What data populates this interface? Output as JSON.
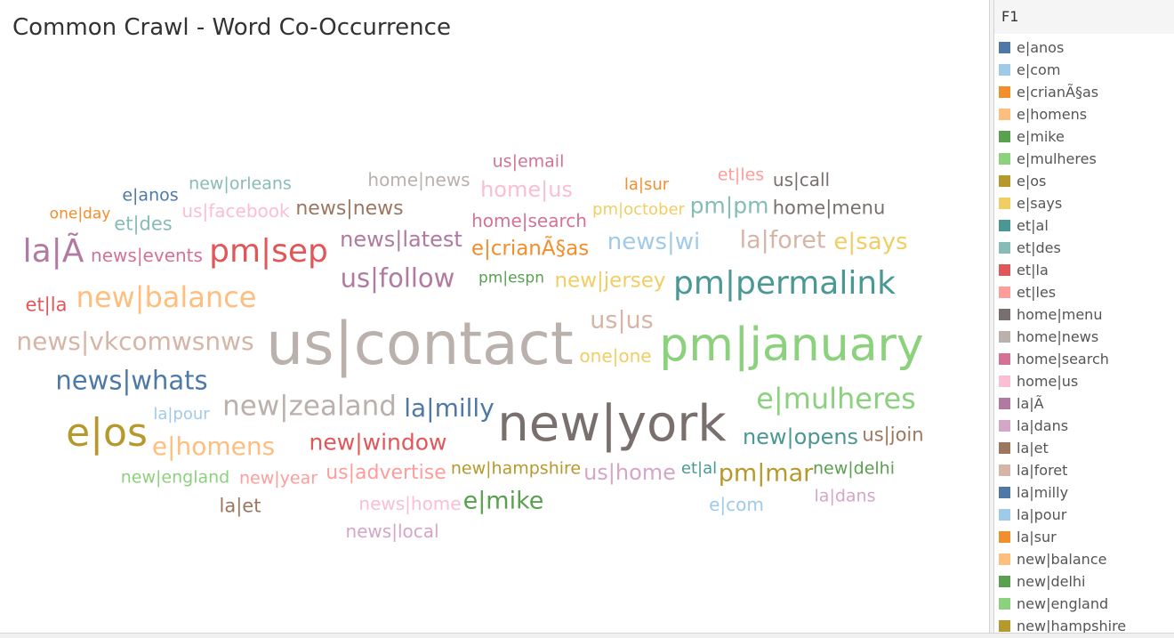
{
  "title": "Common Crawl - Word Co-Occurrence",
  "legend": {
    "title": "F1",
    "items": [
      {
        "label": "e|anos",
        "color": "#4e79a7"
      },
      {
        "label": "e|com",
        "color": "#a0cbe8"
      },
      {
        "label": "e|crianÃ§as",
        "color": "#f28e2b"
      },
      {
        "label": "e|homens",
        "color": "#ffbe7d"
      },
      {
        "label": "e|mike",
        "color": "#59a14f"
      },
      {
        "label": "e|mulheres",
        "color": "#8cd17d"
      },
      {
        "label": "e|os",
        "color": "#b6992d"
      },
      {
        "label": "e|says",
        "color": "#f1ce63"
      },
      {
        "label": "et|al",
        "color": "#499894"
      },
      {
        "label": "et|des",
        "color": "#86bcb6"
      },
      {
        "label": "et|la",
        "color": "#e15759"
      },
      {
        "label": "et|les",
        "color": "#ff9d9a"
      },
      {
        "label": "home|menu",
        "color": "#79706e"
      },
      {
        "label": "home|news",
        "color": "#bab0ac"
      },
      {
        "label": "home|search",
        "color": "#d37295"
      },
      {
        "label": "home|us",
        "color": "#fabfd2"
      },
      {
        "label": "la|Ã",
        "color": "#b07aa1"
      },
      {
        "label": "la|dans",
        "color": "#d4a6c8"
      },
      {
        "label": "la|et",
        "color": "#9d7660"
      },
      {
        "label": "la|foret",
        "color": "#d7b5a6"
      },
      {
        "label": "la|milly",
        "color": "#4e79a7"
      },
      {
        "label": "la|pour",
        "color": "#a0cbe8"
      },
      {
        "label": "la|sur",
        "color": "#f28e2b"
      },
      {
        "label": "new|balance",
        "color": "#ffbe7d"
      },
      {
        "label": "new|delhi",
        "color": "#59a14f"
      },
      {
        "label": "new|england",
        "color": "#8cd17d"
      },
      {
        "label": "new|hampshire",
        "color": "#b6992d"
      }
    ]
  },
  "chart_data": {
    "type": "wordcloud",
    "words": [
      {
        "text": "us|contact",
        "color": "#bab0ac",
        "size": 66
      },
      {
        "text": "pm|january",
        "color": "#8cd17d",
        "size": 52
      },
      {
        "text": "new|york",
        "color": "#79706e",
        "size": 56
      },
      {
        "text": "e|os",
        "color": "#b6992d",
        "size": 44
      },
      {
        "text": "pm|permalink",
        "color": "#499894",
        "size": 36
      },
      {
        "text": "pm|sep",
        "color": "#e15759",
        "size": 36
      },
      {
        "text": "la|Ã",
        "color": "#b07aa1",
        "size": 36
      },
      {
        "text": "e|mulheres",
        "color": "#8cd17d",
        "size": 32
      },
      {
        "text": "new|balance",
        "color": "#ffbe7d",
        "size": 32
      },
      {
        "text": "new|zealand",
        "color": "#bab0ac",
        "size": 31
      },
      {
        "text": "news|whats",
        "color": "#4e79a7",
        "size": 29
      },
      {
        "text": "us|follow",
        "color": "#b07aa1",
        "size": 29
      },
      {
        "text": "e|homens",
        "color": "#ffbe7d",
        "size": 28
      },
      {
        "text": "news|vkcomwsnws",
        "color": "#d7b5a6",
        "size": 28
      },
      {
        "text": "la|milly",
        "color": "#4e79a7",
        "size": 28
      },
      {
        "text": "la|foret",
        "color": "#d7b5a6",
        "size": 27
      },
      {
        "text": "e|mike",
        "color": "#59a14f",
        "size": 27
      },
      {
        "text": "pm|mar",
        "color": "#b6992d",
        "size": 27
      },
      {
        "text": "us|us",
        "color": "#d7b5a6",
        "size": 27
      },
      {
        "text": "news|wi",
        "color": "#a0cbe8",
        "size": 26
      },
      {
        "text": "e|says",
        "color": "#f1ce63",
        "size": 26
      },
      {
        "text": "pm|pm",
        "color": "#86bcb6",
        "size": 25
      },
      {
        "text": "new|window",
        "color": "#e15759",
        "size": 25
      },
      {
        "text": "news|latest",
        "color": "#b07aa1",
        "size": 24
      },
      {
        "text": "home|us",
        "color": "#fabfd2",
        "size": 24
      },
      {
        "text": "new|opens",
        "color": "#499894",
        "size": 24
      },
      {
        "text": "us|home",
        "color": "#d4a6c8",
        "size": 24
      },
      {
        "text": "new|jersey",
        "color": "#f1ce63",
        "size": 23
      },
      {
        "text": "e|crianÃ§as",
        "color": "#f28e2b",
        "size": 23
      },
      {
        "text": "news|news",
        "color": "#9d7660",
        "size": 22
      },
      {
        "text": "us|advertise",
        "color": "#ff9d9a",
        "size": 22
      },
      {
        "text": "home|menu",
        "color": "#79706e",
        "size": 21
      },
      {
        "text": "et|des",
        "color": "#86bcb6",
        "size": 21
      },
      {
        "text": "us|join",
        "color": "#9d7660",
        "size": 21
      },
      {
        "text": "et|la",
        "color": "#e15759",
        "size": 21
      },
      {
        "text": "la|et",
        "color": "#9d7660",
        "size": 21
      },
      {
        "text": "us|facebook",
        "color": "#fabfd2",
        "size": 20
      },
      {
        "text": "home|search",
        "color": "#d37295",
        "size": 20
      },
      {
        "text": "us|call",
        "color": "#79706e",
        "size": 20
      },
      {
        "text": "home|news",
        "color": "#bab0ac",
        "size": 20
      },
      {
        "text": "news|events",
        "color": "#d37295",
        "size": 20
      },
      {
        "text": "news|local",
        "color": "#d4a6c8",
        "size": 20
      },
      {
        "text": "news|home",
        "color": "#fabfd2",
        "size": 20
      },
      {
        "text": "e|com",
        "color": "#a0cbe8",
        "size": 20
      },
      {
        "text": "one|one",
        "color": "#f1ce63",
        "size": 20
      },
      {
        "text": "et|les",
        "color": "#ff9d9a",
        "size": 19
      },
      {
        "text": "new|delhi",
        "color": "#59a14f",
        "size": 19
      },
      {
        "text": "new|england",
        "color": "#8cd17d",
        "size": 19
      },
      {
        "text": "new|year",
        "color": "#ff9d9a",
        "size": 19
      },
      {
        "text": "new|orleans",
        "color": "#86bcb6",
        "size": 19
      },
      {
        "text": "new|hampshire",
        "color": "#b6992d",
        "size": 19
      },
      {
        "text": "e|anos",
        "color": "#4e79a7",
        "size": 19
      },
      {
        "text": "us|email",
        "color": "#d37295",
        "size": 19
      },
      {
        "text": "la|dans",
        "color": "#d4a6c8",
        "size": 19
      },
      {
        "text": "pm|october",
        "color": "#f1ce63",
        "size": 18
      },
      {
        "text": "la|sur",
        "color": "#f28e2b",
        "size": 18
      },
      {
        "text": "la|pour",
        "color": "#a0cbe8",
        "size": 18
      },
      {
        "text": "et|al",
        "color": "#499894",
        "size": 18
      },
      {
        "text": "pm|espn",
        "color": "#59a14f",
        "size": 17
      },
      {
        "text": "one|day",
        "color": "#f28e2b",
        "size": 17
      }
    ]
  }
}
